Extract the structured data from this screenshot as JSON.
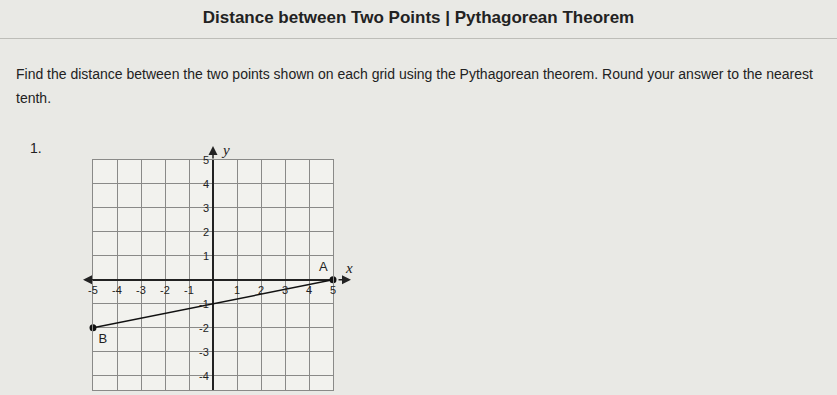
{
  "header": {
    "title": "Distance between Two Points | Pythagorean Theorem"
  },
  "instructions": "Find the distance between the two points shown on each grid using the Pythagorean theorem. Round your answer to the nearest tenth.",
  "problem_number": "1.",
  "chart_data": {
    "type": "scatter",
    "x_label": "x",
    "y_label": "y",
    "points": [
      {
        "label": "A",
        "x": 5,
        "y": 0
      },
      {
        "label": "B",
        "x": -5,
        "y": -2
      }
    ],
    "line_style": "solid",
    "marker": "circle",
    "color": "#111111",
    "xlim": [
      -5,
      5
    ],
    "ylim": [
      -4.6,
      5
    ],
    "xticks": [
      -5,
      -4,
      -3,
      -2,
      -1,
      1,
      2,
      3,
      4,
      5
    ],
    "yticks": [
      5,
      4,
      3,
      2,
      1,
      -1,
      -2,
      -3,
      -4
    ],
    "grid": true
  }
}
